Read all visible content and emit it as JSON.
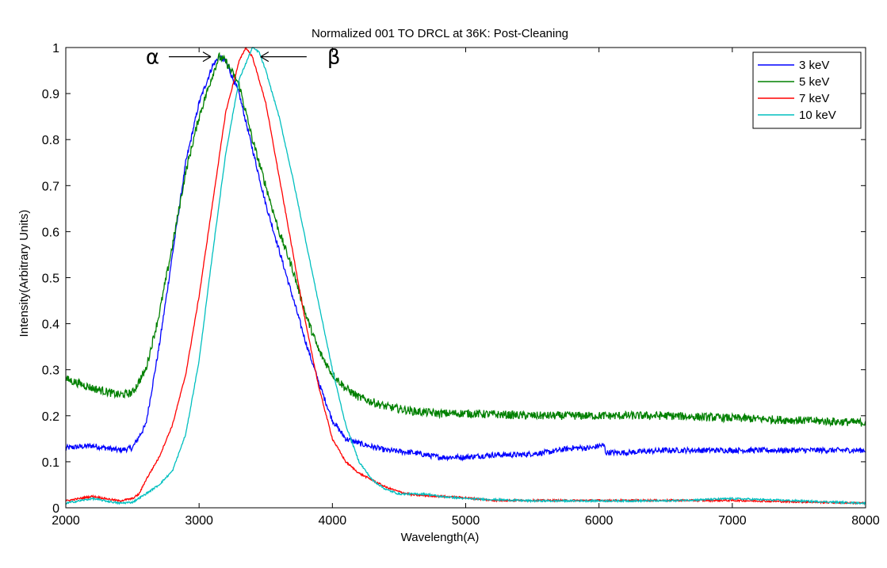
{
  "chart_data": {
    "type": "line",
    "title": "Normalized 001 TO DRCL at 36K: Post-Cleaning",
    "xlabel": "Wavelength(A)",
    "ylabel": "Intensity(Arbitrary Units)",
    "xlim": [
      2000,
      8000
    ],
    "ylim": [
      0,
      1
    ],
    "x_ticks": [
      "2000",
      "3000",
      "4000",
      "5000",
      "6000",
      "7000",
      "8000"
    ],
    "y_ticks": [
      "0",
      "0.1",
      "0.2",
      "0.3",
      "0.4",
      "0.5",
      "0.6",
      "0.7",
      "0.8",
      "0.9",
      "1"
    ],
    "grid": false,
    "legend_position": "top-right",
    "series": [
      {
        "name": "3 keV",
        "color": "#0000ff",
        "noise": 0.006,
        "points": [
          [
            2000,
            0.13
          ],
          [
            2200,
            0.135
          ],
          [
            2400,
            0.125
          ],
          [
            2500,
            0.13
          ],
          [
            2600,
            0.18
          ],
          [
            2700,
            0.35
          ],
          [
            2800,
            0.55
          ],
          [
            2900,
            0.75
          ],
          [
            3000,
            0.88
          ],
          [
            3100,
            0.96
          ],
          [
            3150,
            0.98
          ],
          [
            3200,
            0.97
          ],
          [
            3300,
            0.9
          ],
          [
            3400,
            0.78
          ],
          [
            3500,
            0.66
          ],
          [
            3600,
            0.56
          ],
          [
            3700,
            0.46
          ],
          [
            3800,
            0.36
          ],
          [
            3900,
            0.27
          ],
          [
            4000,
            0.19
          ],
          [
            4100,
            0.15
          ],
          [
            4200,
            0.14
          ],
          [
            4400,
            0.125
          ],
          [
            4600,
            0.12
          ],
          [
            4800,
            0.11
          ],
          [
            5000,
            0.11
          ],
          [
            5200,
            0.115
          ],
          [
            5400,
            0.115
          ],
          [
            5600,
            0.12
          ],
          [
            5800,
            0.13
          ],
          [
            5950,
            0.13
          ],
          [
            6000,
            0.135
          ],
          [
            6040,
            0.135
          ],
          [
            6050,
            0.12
          ],
          [
            6200,
            0.12
          ],
          [
            6500,
            0.125
          ],
          [
            7000,
            0.125
          ],
          [
            7500,
            0.125
          ],
          [
            8000,
            0.125
          ]
        ]
      },
      {
        "name": "5 keV",
        "color": "#008000",
        "noise": 0.009,
        "points": [
          [
            2000,
            0.28
          ],
          [
            2200,
            0.26
          ],
          [
            2400,
            0.245
          ],
          [
            2500,
            0.25
          ],
          [
            2600,
            0.3
          ],
          [
            2700,
            0.42
          ],
          [
            2800,
            0.57
          ],
          [
            2900,
            0.73
          ],
          [
            3000,
            0.85
          ],
          [
            3100,
            0.94
          ],
          [
            3150,
            0.98
          ],
          [
            3200,
            0.97
          ],
          [
            3300,
            0.92
          ],
          [
            3400,
            0.8
          ],
          [
            3500,
            0.7
          ],
          [
            3600,
            0.6
          ],
          [
            3700,
            0.52
          ],
          [
            3800,
            0.42
          ],
          [
            3900,
            0.34
          ],
          [
            4000,
            0.29
          ],
          [
            4100,
            0.26
          ],
          [
            4200,
            0.24
          ],
          [
            4400,
            0.22
          ],
          [
            4600,
            0.21
          ],
          [
            4800,
            0.205
          ],
          [
            5000,
            0.205
          ],
          [
            5500,
            0.2
          ],
          [
            6000,
            0.2
          ],
          [
            6500,
            0.2
          ],
          [
            7000,
            0.195
          ],
          [
            7500,
            0.19
          ],
          [
            8000,
            0.185
          ]
        ]
      },
      {
        "name": "7 keV",
        "color": "#ff0000",
        "noise": 0.002,
        "points": [
          [
            2000,
            0.015
          ],
          [
            2200,
            0.025
          ],
          [
            2300,
            0.02
          ],
          [
            2400,
            0.015
          ],
          [
            2500,
            0.02
          ],
          [
            2550,
            0.03
          ],
          [
            2600,
            0.06
          ],
          [
            2700,
            0.11
          ],
          [
            2800,
            0.18
          ],
          [
            2900,
            0.29
          ],
          [
            3000,
            0.46
          ],
          [
            3100,
            0.66
          ],
          [
            3200,
            0.86
          ],
          [
            3300,
            0.97
          ],
          [
            3350,
            1.0
          ],
          [
            3400,
            0.98
          ],
          [
            3500,
            0.88
          ],
          [
            3600,
            0.72
          ],
          [
            3700,
            0.56
          ],
          [
            3800,
            0.4
          ],
          [
            3900,
            0.26
          ],
          [
            4000,
            0.15
          ],
          [
            4100,
            0.1
          ],
          [
            4200,
            0.075
          ],
          [
            4300,
            0.06
          ],
          [
            4400,
            0.045
          ],
          [
            4500,
            0.035
          ],
          [
            4600,
            0.028
          ],
          [
            4800,
            0.025
          ],
          [
            5000,
            0.022
          ],
          [
            5200,
            0.016
          ],
          [
            6000,
            0.016
          ],
          [
            7000,
            0.016
          ],
          [
            8000,
            0.01
          ]
        ]
      },
      {
        "name": "10 keV",
        "color": "#00bfbf",
        "noise": 0.002,
        "points": [
          [
            2000,
            0.01
          ],
          [
            2200,
            0.02
          ],
          [
            2300,
            0.015
          ],
          [
            2400,
            0.01
          ],
          [
            2500,
            0.012
          ],
          [
            2600,
            0.03
          ],
          [
            2700,
            0.05
          ],
          [
            2800,
            0.08
          ],
          [
            2900,
            0.16
          ],
          [
            3000,
            0.32
          ],
          [
            3100,
            0.55
          ],
          [
            3200,
            0.77
          ],
          [
            3300,
            0.93
          ],
          [
            3400,
            1.0
          ],
          [
            3450,
            0.99
          ],
          [
            3500,
            0.95
          ],
          [
            3600,
            0.85
          ],
          [
            3700,
            0.72
          ],
          [
            3800,
            0.58
          ],
          [
            3900,
            0.44
          ],
          [
            4000,
            0.3
          ],
          [
            4100,
            0.18
          ],
          [
            4200,
            0.1
          ],
          [
            4300,
            0.06
          ],
          [
            4400,
            0.04
          ],
          [
            4500,
            0.03
          ],
          [
            4700,
            0.03
          ],
          [
            4800,
            0.025
          ],
          [
            5000,
            0.02
          ],
          [
            5500,
            0.015
          ],
          [
            6000,
            0.015
          ],
          [
            6500,
            0.015
          ],
          [
            7000,
            0.02
          ],
          [
            7500,
            0.015
          ],
          [
            8000,
            0.01
          ]
        ]
      }
    ],
    "annotations": [
      {
        "text": "α",
        "arrow": "right",
        "x": 3100,
        "y": 0.98
      },
      {
        "text": "β",
        "arrow": "left",
        "x": 3450,
        "y": 0.98
      }
    ]
  }
}
